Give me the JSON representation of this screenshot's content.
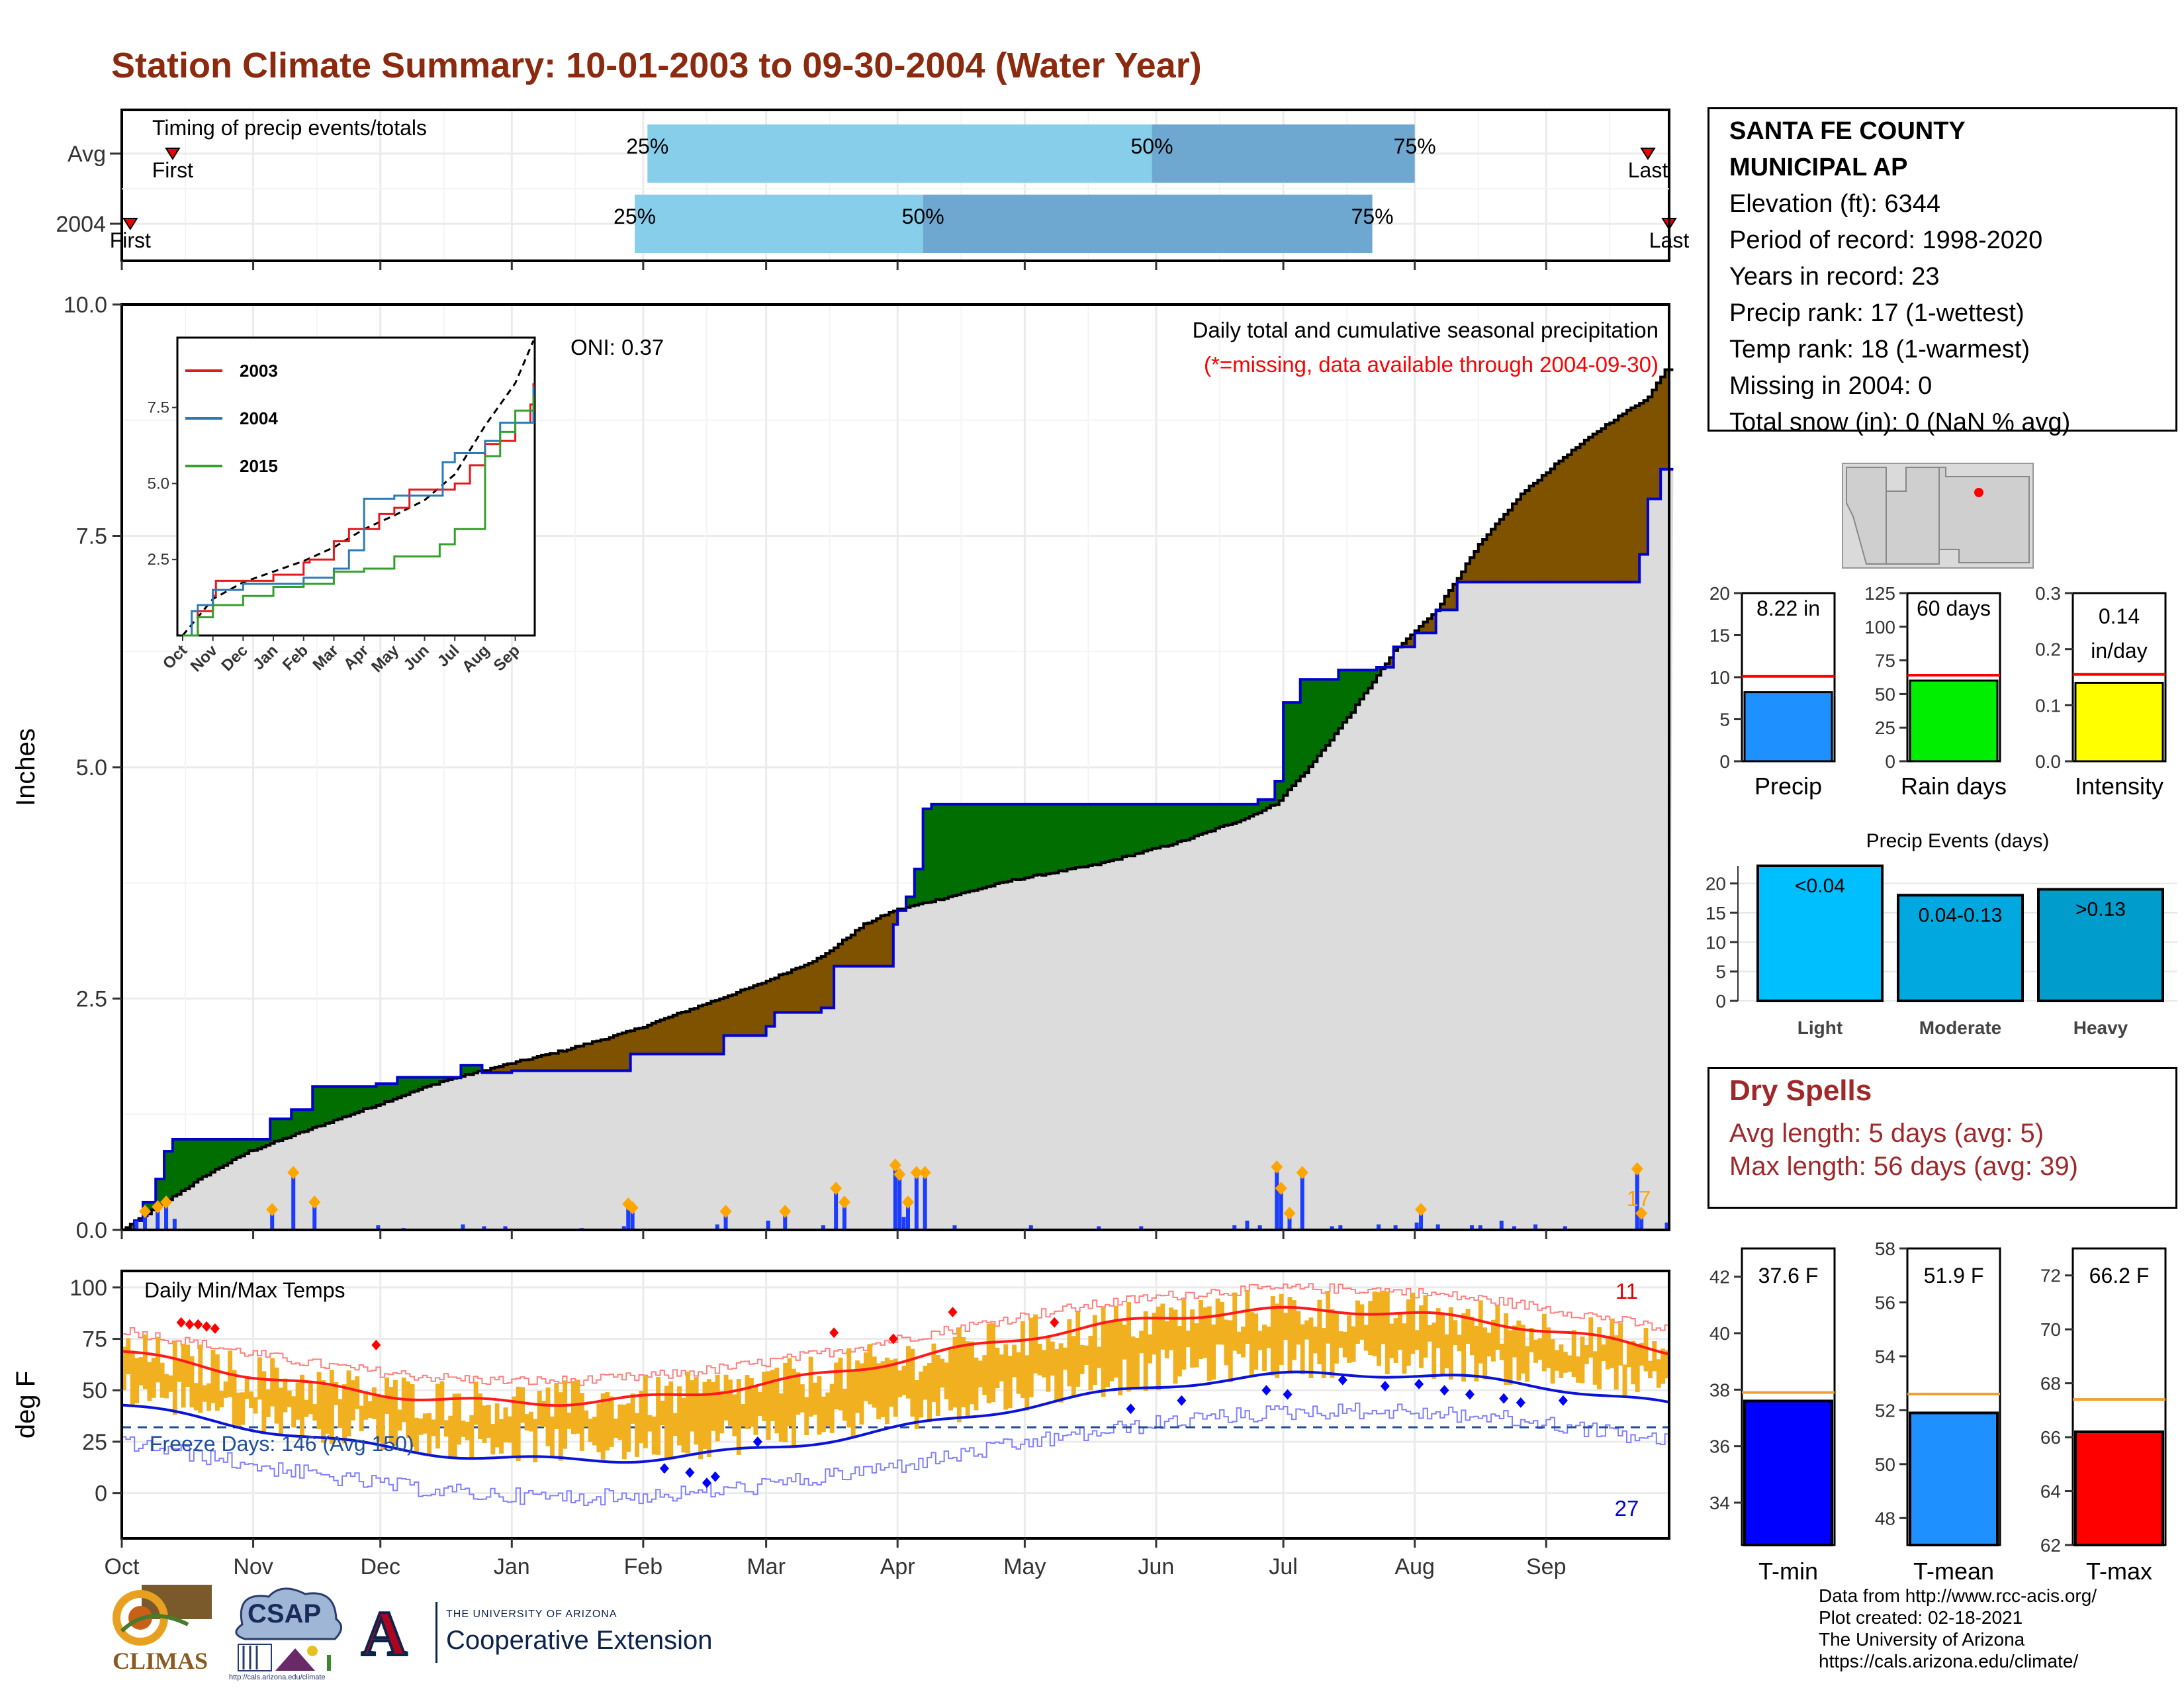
{
  "title": "Station Climate Summary: 10-01-2003 to 09-30-2004 (Water Year)",
  "colors": {
    "title": "#8b2a0e",
    "deficit": "#006e00",
    "surplus": "#7f5200",
    "current_line": "#0000d0",
    "avg_fill": "#dcdcdc",
    "daily_bar": "#1c3cff",
    "marker": "#ffa500",
    "temp_range": "#f0b020",
    "tmax": "#ff1a1a",
    "tmin": "#0a14d6",
    "q_light": "#87ceeb",
    "q_dark": "#6ea8d0"
  },
  "timing": {
    "label": "Timing of precip events/totals",
    "rows": [
      {
        "name": "Avg",
        "first_label": "First",
        "last_label": "Last",
        "first_day": 12,
        "last_day": 360,
        "p25": 124,
        "p50": 243,
        "p75": 305
      },
      {
        "name": "2004",
        "first_label": "First",
        "last_label": "Last",
        "first_day": 2,
        "last_day": 365,
        "p25": 121,
        "p50": 189,
        "p75": 295
      }
    ],
    "pct_labels": [
      "25%",
      "50%",
      "75%"
    ]
  },
  "precip": {
    "ylabel": "Inches",
    "yticks": [
      "0.0",
      "2.5",
      "5.0",
      "7.5",
      "10.0"
    ],
    "ymax": 10,
    "subtitle": "Daily total and cumulative seasonal precipitation",
    "missing_note": "(*=missing, data available through 2004-09-30)",
    "oni": "ONI: 0.37",
    "corner_count": "17"
  },
  "inset": {
    "yticks": [
      "2.5",
      "5.0",
      "7.5"
    ],
    "months": [
      "Oct",
      "Nov",
      "Dec",
      "Jan",
      "Feb",
      "Mar",
      "Apr",
      "May",
      "Jun",
      "Jul",
      "Aug",
      "Sep"
    ],
    "legend": [
      {
        "name": "2003",
        "color": "#e31a1c"
      },
      {
        "name": "2004",
        "color": "#2c7bb6"
      },
      {
        "name": "2015",
        "color": "#33a02c"
      }
    ]
  },
  "temp": {
    "ylabel": "deg F",
    "yticks": [
      "0",
      "25",
      "50",
      "75",
      "100"
    ],
    "label": "Daily Min/Max Temps",
    "freeze": "Freeze Days: 146 (Avg 150)",
    "hot_count": "11",
    "cold_count": "27"
  },
  "months": [
    "Oct",
    "Nov",
    "Dec",
    "Jan",
    "Feb",
    "Mar",
    "Apr",
    "May",
    "Jun",
    "Jul",
    "Aug",
    "Sep"
  ],
  "station": {
    "name_line1": "SANTA FE COUNTY",
    "name_line2": "MUNICIPAL AP",
    "lines": [
      "Elevation (ft): 6344",
      "Period of record: 1998-2020",
      "Years in record: 23",
      "Precip rank: 17 (1-wettest)",
      "Temp rank: 18 (1-warmest)",
      "Missing in 2004: 0",
      "Total snow (in): 0 (NaN % avg)"
    ]
  },
  "mini_bars": [
    {
      "label": "Precip",
      "value_text": "8.22 in",
      "value": 8.22,
      "avg": 10.1,
      "max": 20,
      "ticks": [
        "0",
        "5",
        "10",
        "15",
        "20"
      ],
      "color": "#1e90ff"
    },
    {
      "label": "Rain days",
      "value_text": "60 days",
      "value": 60,
      "avg": 64,
      "max": 125,
      "ticks": [
        "0",
        "25",
        "50",
        "75",
        "100",
        "125"
      ],
      "color": "#00ee00"
    },
    {
      "label": "Intensity",
      "value_text": "0.14 in/day",
      "value_line1": "0.14",
      "value_line2": "in/day",
      "value": 0.14,
      "avg": 0.155,
      "max": 0.3,
      "ticks": [
        "0.0",
        "0.1",
        "0.2",
        "0.3"
      ],
      "color": "#ffff00"
    }
  ],
  "events": {
    "title": "Precip Events (days)",
    "ticks": [
      "0",
      "5",
      "10",
      "15",
      "20"
    ],
    "bars": [
      {
        "label": "Light",
        "value_text": "<0.04",
        "value": 23,
        "color": "#00bfff"
      },
      {
        "label": "Moderate",
        "value_text": "0.04-0.13",
        "value": 18,
        "color": "#00a8e0"
      },
      {
        "label": "Heavy",
        "value_text": ">0.13",
        "value": 19,
        "color": "#009ccc"
      }
    ]
  },
  "dry_spells": {
    "title": "Dry Spells",
    "avg_line": "Avg length: 5 days (avg: 5)",
    "max_line": "Max length: 56 days (avg: 39)"
  },
  "temp_bars": [
    {
      "label": "T-min",
      "value_text": "37.6 F",
      "value": 37.6,
      "avg": 37.9,
      "min": 32.5,
      "max": 43,
      "ticks": [
        "34",
        "36",
        "38",
        "40",
        "42"
      ],
      "color": "#0000ff"
    },
    {
      "label": "T-mean",
      "value_text": "51.9 F",
      "value": 51.9,
      "avg": 52.6,
      "min": 47,
      "max": 58,
      "ticks": [
        "48",
        "50",
        "52",
        "54",
        "56",
        "58"
      ],
      "color": "#1e90ff"
    },
    {
      "label": "T-max",
      "value_text": "66.2 F",
      "value": 66.2,
      "avg": 67.4,
      "min": 62,
      "max": 73,
      "ticks": [
        "62",
        "64",
        "66",
        "68",
        "70",
        "72"
      ],
      "color": "#ff0000"
    }
  ],
  "credits": [
    "Data from http://www.rcc-acis.org/",
    "Plot created: 02-18-2021",
    "The University of Arizona",
    "https://cals.arizona.edu/climate/"
  ],
  "logos": {
    "climas": "CLIMAS",
    "csap": "CSAP",
    "csap_url": "http://cals.arizona.edu/climate",
    "ua_line1": "THE UNIVERSITY OF ARIZONA",
    "ua_line2": "Cooperative Extension",
    "ua_letter": "A"
  }
}
